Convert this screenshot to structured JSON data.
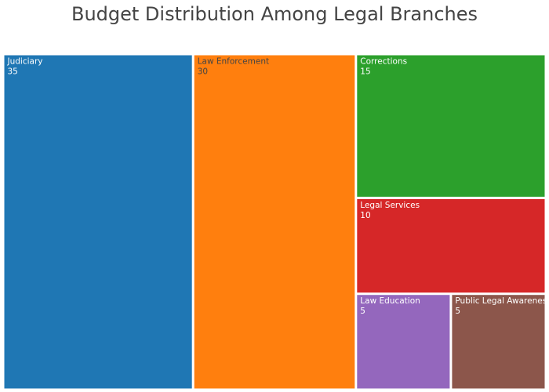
{
  "chart_data": {
    "type": "treemap",
    "title": "Budget Distribution Among Legal Branches",
    "items": [
      {
        "label": "Judiciary",
        "value": 35,
        "color": "#1f77b4",
        "text_color": "#ffffff"
      },
      {
        "label": "Law Enforcement",
        "value": 30,
        "color": "#ff7f0e",
        "text_color": "#444444"
      },
      {
        "label": "Corrections",
        "value": 15,
        "color": "#2ca02c",
        "text_color": "#ffffff"
      },
      {
        "label": "Legal Services",
        "value": 10,
        "color": "#d62728",
        "text_color": "#ffffff"
      },
      {
        "label": "Law Education",
        "value": 5,
        "color": "#9467bd",
        "text_color": "#ffffff"
      },
      {
        "label": "Public Legal Awareness",
        "value": 5,
        "color": "#8c564b",
        "text_color": "#ffffff"
      }
    ]
  }
}
